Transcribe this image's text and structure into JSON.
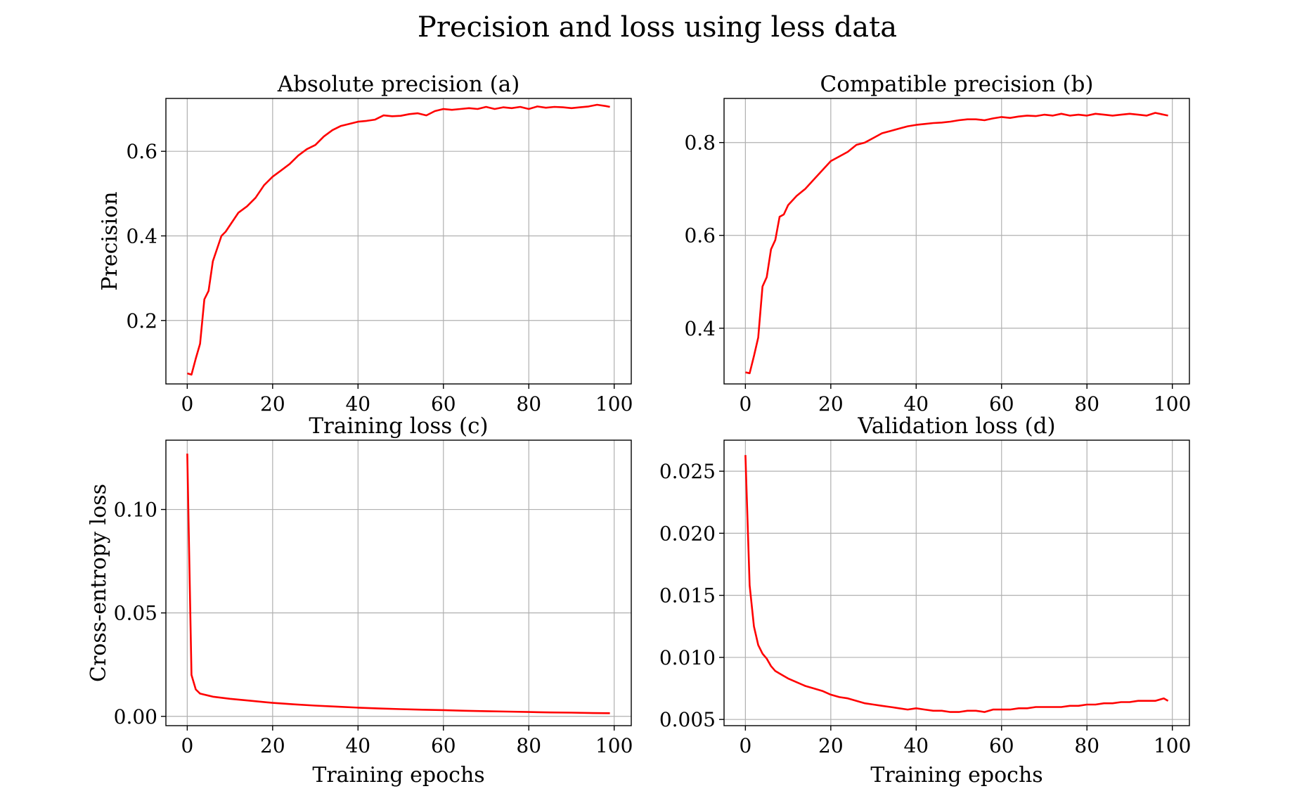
{
  "suptitle": "Precision and loss using less data",
  "chart_data": [
    {
      "type": "line",
      "title": "Absolute precision (a)",
      "xlabel": "",
      "ylabel": "Precision",
      "xlim": [
        -5,
        104
      ],
      "ylim": [
        0.05,
        0.725
      ],
      "xticks": [
        0,
        20,
        40,
        60,
        80,
        100
      ],
      "yticks": [
        0.2,
        0.4,
        0.6
      ],
      "ytick_labels": [
        "0.2",
        "0.4",
        "0.6"
      ],
      "grid": true,
      "color": "#ff0000",
      "x": [
        0,
        1,
        2,
        3,
        4,
        5,
        6,
        7,
        8,
        9,
        10,
        12,
        14,
        16,
        18,
        20,
        22,
        24,
        26,
        28,
        30,
        32,
        34,
        36,
        38,
        40,
        42,
        44,
        46,
        48,
        50,
        52,
        54,
        56,
        58,
        60,
        62,
        64,
        66,
        68,
        70,
        72,
        74,
        76,
        78,
        80,
        82,
        84,
        86,
        88,
        90,
        92,
        94,
        96,
        98,
        99
      ],
      "y": [
        0.075,
        0.072,
        0.11,
        0.145,
        0.25,
        0.27,
        0.34,
        0.37,
        0.4,
        0.41,
        0.425,
        0.455,
        0.47,
        0.49,
        0.52,
        0.54,
        0.555,
        0.57,
        0.59,
        0.605,
        0.615,
        0.635,
        0.65,
        0.66,
        0.665,
        0.67,
        0.672,
        0.675,
        0.685,
        0.683,
        0.684,
        0.688,
        0.69,
        0.685,
        0.695,
        0.7,
        0.698,
        0.7,
        0.702,
        0.7,
        0.705,
        0.7,
        0.704,
        0.702,
        0.705,
        0.7,
        0.706,
        0.703,
        0.705,
        0.704,
        0.702,
        0.704,
        0.706,
        0.71,
        0.707,
        0.705
      ]
    },
    {
      "type": "line",
      "title": "Compatible precision (b)",
      "xlabel": "",
      "ylabel": "",
      "xlim": [
        -5,
        104
      ],
      "ylim": [
        0.28,
        0.895
      ],
      "xticks": [
        0,
        20,
        40,
        60,
        80,
        100
      ],
      "yticks": [
        0.4,
        0.6,
        0.8
      ],
      "ytick_labels": [
        "0.4",
        "0.6",
        "0.8"
      ],
      "grid": true,
      "color": "#ff0000",
      "x": [
        0,
        1,
        2,
        3,
        4,
        5,
        6,
        7,
        8,
        9,
        10,
        12,
        14,
        16,
        18,
        20,
        22,
        24,
        26,
        28,
        30,
        32,
        34,
        36,
        38,
        40,
        42,
        44,
        46,
        48,
        50,
        52,
        54,
        56,
        58,
        60,
        62,
        64,
        66,
        68,
        70,
        72,
        74,
        76,
        78,
        80,
        82,
        84,
        86,
        88,
        90,
        92,
        94,
        96,
        98,
        99
      ],
      "y": [
        0.305,
        0.303,
        0.34,
        0.38,
        0.49,
        0.51,
        0.57,
        0.59,
        0.64,
        0.645,
        0.665,
        0.685,
        0.7,
        0.72,
        0.74,
        0.76,
        0.77,
        0.78,
        0.795,
        0.8,
        0.81,
        0.82,
        0.825,
        0.83,
        0.835,
        0.838,
        0.84,
        0.842,
        0.843,
        0.845,
        0.848,
        0.85,
        0.85,
        0.848,
        0.852,
        0.855,
        0.853,
        0.856,
        0.858,
        0.857,
        0.86,
        0.858,
        0.862,
        0.858,
        0.86,
        0.858,
        0.862,
        0.86,
        0.858,
        0.86,
        0.862,
        0.86,
        0.858,
        0.864,
        0.86,
        0.858
      ]
    },
    {
      "type": "line",
      "title": "Training loss (c)",
      "xlabel": "Training epochs",
      "ylabel": "Cross-entropy loss",
      "xlim": [
        -5,
        104
      ],
      "ylim": [
        -0.0045,
        0.1335
      ],
      "xticks": [
        0,
        20,
        40,
        60,
        80,
        100
      ],
      "yticks": [
        0.0,
        0.05,
        0.1
      ],
      "ytick_labels": [
        "0.00",
        "0.05",
        "0.10"
      ],
      "grid": true,
      "color": "#ff0000",
      "x": [
        0,
        1,
        2,
        3,
        4,
        5,
        6,
        8,
        10,
        15,
        20,
        25,
        30,
        35,
        40,
        45,
        50,
        55,
        60,
        65,
        70,
        75,
        80,
        85,
        90,
        95,
        99
      ],
      "y": [
        0.127,
        0.02,
        0.013,
        0.011,
        0.0105,
        0.01,
        0.0095,
        0.009,
        0.0085,
        0.0075,
        0.0065,
        0.0058,
        0.0052,
        0.0047,
        0.0042,
        0.0038,
        0.0035,
        0.0032,
        0.003,
        0.0027,
        0.0025,
        0.0023,
        0.0021,
        0.0019,
        0.0018,
        0.0016,
        0.0015
      ]
    },
    {
      "type": "line",
      "title": "Validation loss (d)",
      "xlabel": "Training epochs",
      "ylabel": "",
      "xlim": [
        -5,
        104
      ],
      "ylim": [
        0.0045,
        0.0275
      ],
      "xticks": [
        0,
        20,
        40,
        60,
        80,
        100
      ],
      "yticks": [
        0.005,
        0.01,
        0.015,
        0.02,
        0.025
      ],
      "ytick_labels": [
        "0.005",
        "0.010",
        "0.015",
        "0.020",
        "0.025"
      ],
      "grid": true,
      "color": "#ff0000",
      "x": [
        0,
        1,
        2,
        3,
        4,
        5,
        6,
        7,
        8,
        9,
        10,
        12,
        14,
        16,
        18,
        20,
        22,
        24,
        26,
        28,
        30,
        32,
        34,
        36,
        38,
        40,
        42,
        44,
        46,
        48,
        50,
        52,
        54,
        56,
        58,
        60,
        62,
        64,
        66,
        68,
        70,
        72,
        74,
        76,
        78,
        80,
        82,
        84,
        86,
        88,
        90,
        92,
        94,
        96,
        98,
        99
      ],
      "y": [
        0.0263,
        0.0158,
        0.0125,
        0.011,
        0.0103,
        0.0099,
        0.0093,
        0.0089,
        0.0087,
        0.0085,
        0.0083,
        0.008,
        0.0077,
        0.0075,
        0.0073,
        0.007,
        0.0068,
        0.0067,
        0.0065,
        0.0063,
        0.0062,
        0.0061,
        0.006,
        0.0059,
        0.0058,
        0.0059,
        0.0058,
        0.0057,
        0.0057,
        0.0056,
        0.0056,
        0.0057,
        0.0057,
        0.0056,
        0.0058,
        0.0058,
        0.0058,
        0.0059,
        0.0059,
        0.006,
        0.006,
        0.006,
        0.006,
        0.0061,
        0.0061,
        0.0062,
        0.0062,
        0.0063,
        0.0063,
        0.0064,
        0.0064,
        0.0065,
        0.0065,
        0.0065,
        0.0067,
        0.0065
      ]
    }
  ]
}
